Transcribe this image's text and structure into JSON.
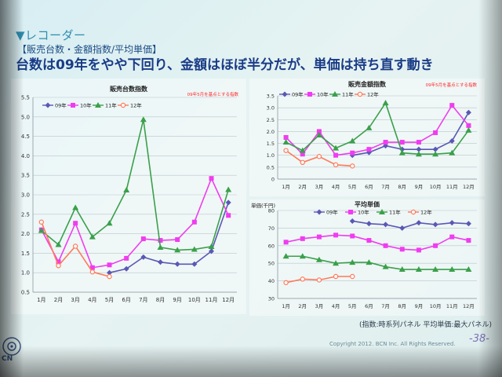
{
  "header": {
    "section": "▼レコーダー",
    "subtitle": "【販売台数・金額指数/平均単価】",
    "headline": "台数は09年をやや下回り、金額はほぼ半分だが、単価は持ち直す動き"
  },
  "footer": {
    "note": "(指数:時系列パネル 平均単価:最大パネル)",
    "copyright": "Copyright 2012. BCN Inc. All Rights Reserved.",
    "page": "-38-",
    "logo_text": "CN"
  },
  "colors": {
    "09年": "#5b58b4",
    "10年": "#f03cf0",
    "11年": "#3aa04a",
    "12年": "#ff7a5a",
    "note": "#ff2a2a"
  },
  "chart_data": [
    {
      "type": "line",
      "title": "販売台数指数",
      "note": "09年5月を基点とする指数",
      "categories": [
        "1月",
        "2月",
        "3月",
        "4月",
        "5月",
        "6月",
        "7月",
        "8月",
        "9月",
        "10月",
        "11月",
        "12月"
      ],
      "ylim": [
        0.5,
        5.5
      ],
      "yticks": [
        "0.5",
        "1.0",
        "1.5",
        "2.0",
        "2.5",
        "3.0",
        "3.5",
        "4.0",
        "4.5",
        "5.0",
        "5.5"
      ],
      "legend": "top-left",
      "series": [
        {
          "name": "09年",
          "values": [
            null,
            null,
            null,
            null,
            1.0,
            1.1,
            1.4,
            1.27,
            1.22,
            1.22,
            1.55,
            2.8
          ]
        },
        {
          "name": "10年",
          "values": [
            2.1,
            1.28,
            2.27,
            1.13,
            1.2,
            1.37,
            1.87,
            1.83,
            1.85,
            2.3,
            3.42,
            2.47
          ]
        },
        {
          "name": "11年",
          "values": [
            2.08,
            1.72,
            2.67,
            1.92,
            2.27,
            3.12,
            4.93,
            1.65,
            1.58,
            1.6,
            1.67,
            3.13
          ]
        },
        {
          "name": "12年",
          "values": [
            2.3,
            1.18,
            1.68,
            1.02,
            0.9,
            null,
            null,
            null,
            null,
            null,
            null,
            null
          ]
        }
      ]
    },
    {
      "type": "line",
      "title": "販売金額指数",
      "note": "09年5月を基点とする指数",
      "categories": [
        "1月",
        "2月",
        "3月",
        "4月",
        "5月",
        "6月",
        "7月",
        "8月",
        "9月",
        "10月",
        "11月",
        "12月"
      ],
      "ylim": [
        0,
        3.5
      ],
      "yticks": [
        "0",
        "0.5",
        "1.0",
        "1.5",
        "2.0",
        "2.5",
        "3.0",
        "3.5"
      ],
      "legend": "top-left",
      "series": [
        {
          "name": "09年",
          "values": [
            null,
            null,
            null,
            null,
            1.0,
            1.12,
            1.4,
            1.25,
            1.25,
            1.25,
            1.6,
            2.8
          ]
        },
        {
          "name": "10年",
          "values": [
            1.75,
            1.05,
            2.0,
            1.0,
            1.1,
            1.25,
            1.55,
            1.55,
            1.55,
            1.95,
            3.1,
            2.25
          ]
        },
        {
          "name": "11年",
          "values": [
            1.55,
            1.2,
            1.85,
            1.3,
            1.6,
            2.15,
            3.2,
            1.1,
            1.05,
            1.05,
            1.1,
            2.05
          ]
        },
        {
          "name": "12年",
          "values": [
            1.2,
            0.7,
            0.95,
            0.6,
            0.55,
            null,
            null,
            null,
            null,
            null,
            null,
            null
          ]
        }
      ]
    },
    {
      "type": "line",
      "title": "平均単価",
      "ylabel": "単価(千円)",
      "categories": [
        "1月",
        "2月",
        "3月",
        "4月",
        "5月",
        "6月",
        "7月",
        "8月",
        "9月",
        "10月",
        "11月",
        "12月"
      ],
      "ylim": [
        30,
        80
      ],
      "yticks": [
        "30",
        "40",
        "50",
        "60",
        "70",
        "80"
      ],
      "legend": "top",
      "series": [
        {
          "name": "09年",
          "values": [
            null,
            null,
            null,
            null,
            74,
            72.5,
            72,
            70,
            73,
            72,
            73,
            72.5
          ]
        },
        {
          "name": "10年",
          "values": [
            62,
            64,
            65,
            66,
            65.5,
            63,
            60,
            58,
            57.5,
            60,
            65,
            63
          ]
        },
        {
          "name": "11年",
          "values": [
            54,
            54,
            52,
            50,
            50.5,
            50.5,
            48,
            46.5,
            46.5,
            46.5,
            46.5,
            46.5
          ]
        },
        {
          "name": "12年",
          "values": [
            39,
            41,
            40.5,
            42.5,
            42.5,
            null,
            null,
            null,
            null,
            null,
            null,
            null
          ]
        }
      ]
    }
  ]
}
